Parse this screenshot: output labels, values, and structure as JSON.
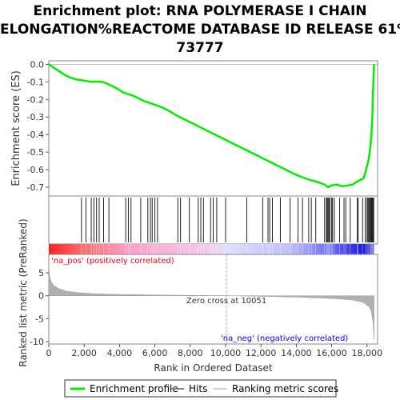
{
  "title_lines": [
    "Enrichment plot: RNA POLYMERASE I CHAIN",
    "ELONGATION%REACTOME DATABASE ID RELEASE 61%",
    "73777"
  ],
  "chart_data": {
    "type": "line",
    "title": "Enrichment plot: RNA POLYMERASE I CHAIN ELONGATION%REACTOME DATABASE ID RELEASE 61% 73777",
    "xlabel": "Rank in Ordered Dataset",
    "x_ticks": [
      "0",
      "2,000",
      "4,000",
      "6,000",
      "8,000",
      "10,000",
      "12,000",
      "14,000",
      "16,000",
      "18,000"
    ],
    "xlim": [
      0,
      18600
    ],
    "top_panel": {
      "ylabel": "Enrichment score (ES)",
      "ylim": [
        -0.75,
        0.02
      ],
      "y_ticks": [
        "0.0",
        "-0.1",
        "-0.2",
        "-0.3",
        "-0.4",
        "-0.5",
        "-0.6",
        "-0.7"
      ],
      "series": [
        {
          "name": "Enrichment profile",
          "color": "#00ee00",
          "x": [
            0,
            300,
            600,
            900,
            1200,
            1500,
            1800,
            2100,
            2400,
            2600,
            2800,
            3000,
            3300,
            3600,
            3900,
            4200,
            4500,
            4800,
            5100,
            5400,
            5700,
            6000,
            6400,
            6800,
            7200,
            7600,
            8000,
            8400,
            8800,
            9200,
            9600,
            10000,
            10400,
            10800,
            11200,
            11600,
            12000,
            12400,
            12800,
            13200,
            13600,
            14000,
            14400,
            14800,
            15200,
            15600,
            15800,
            16000,
            16300,
            16600,
            16900,
            17200,
            17400,
            17600,
            17800,
            17900,
            18000,
            18100,
            18150,
            18200,
            18250,
            18300,
            18330,
            18360,
            18400
          ],
          "y": [
            0.0,
            -0.02,
            -0.04,
            -0.06,
            -0.075,
            -0.085,
            -0.09,
            -0.095,
            -0.1,
            -0.098,
            -0.1,
            -0.1,
            -0.11,
            -0.125,
            -0.14,
            -0.16,
            -0.17,
            -0.18,
            -0.195,
            -0.21,
            -0.22,
            -0.23,
            -0.245,
            -0.265,
            -0.29,
            -0.31,
            -0.33,
            -0.35,
            -0.37,
            -0.39,
            -0.41,
            -0.43,
            -0.45,
            -0.47,
            -0.49,
            -0.51,
            -0.53,
            -0.55,
            -0.57,
            -0.59,
            -0.61,
            -0.63,
            -0.645,
            -0.66,
            -0.67,
            -0.685,
            -0.7,
            -0.69,
            -0.685,
            -0.695,
            -0.69,
            -0.685,
            -0.67,
            -0.66,
            -0.65,
            -0.62,
            -0.58,
            -0.54,
            -0.5,
            -0.46,
            -0.4,
            -0.3,
            -0.2,
            -0.1,
            0.0
          ]
        }
      ]
    },
    "hits": {
      "name": "Hits",
      "x": [
        1850,
        2100,
        2400,
        2550,
        2700,
        2850,
        3100,
        3400,
        4350,
        4500,
        4650,
        5200,
        5600,
        5750,
        5850,
        6000,
        6150,
        7300,
        7450,
        7950,
        8450,
        8600,
        8750,
        9150,
        9300,
        9500,
        10000,
        11200,
        12100,
        12400,
        12500,
        12650,
        13100,
        13650,
        14100,
        14350,
        14700,
        14850,
        15100,
        15600,
        15700,
        15750,
        15800,
        15850,
        15900,
        16000,
        16050,
        16150,
        16450,
        16700,
        16800,
        17050,
        17450,
        17500,
        17750,
        17900,
        18000,
        18050,
        18100,
        18150,
        18200,
        18230,
        18260,
        18290,
        18320,
        18350,
        18380
      ]
    },
    "bottom_panel": {
      "ylabel": "Ranked list metric (PreRanked)",
      "ylim": [
        -10.5,
        9
      ],
      "y_ticks": [
        "5",
        "0",
        "-5",
        "-10"
      ],
      "series": [
        {
          "name": "Ranking metric scores",
          "color": "#b0b0b0",
          "x": [
            0,
            50,
            150,
            300,
            600,
            1000,
            1600,
            2500,
            4000,
            6000,
            8000,
            10051,
            12000,
            14000,
            15500,
            16500,
            17300,
            17800,
            18100,
            18250,
            18350,
            18400
          ],
          "y": [
            6.5,
            4.0,
            3.0,
            2.2,
            1.5,
            1.0,
            0.7,
            0.45,
            0.3,
            0.18,
            0.08,
            0.0,
            -0.12,
            -0.3,
            -0.5,
            -0.7,
            -1.0,
            -1.5,
            -2.3,
            -3.5,
            -6.0,
            -9.5
          ]
        }
      ],
      "zero_cross_x": 10051
    },
    "annotations": {
      "pos_label": "'na_pos' (positively correlated)",
      "neg_label": "'na_neg' (negatively correlated)",
      "zero_cross": "Zero cross at 10051"
    },
    "legend": {
      "placement": "bottom",
      "items": [
        {
          "label": "Enrichment profile",
          "color": "#00ee00"
        },
        {
          "label": "Hits",
          "color": "#808080"
        },
        {
          "label": "Ranking metric scores",
          "color": "#d0d0d0"
        }
      ]
    },
    "colors": {
      "pos_label": "#e8001a",
      "neg_label": "#0000ee",
      "heat_pos": "#ff2a2a",
      "heat_neg": "#1a1aff"
    }
  }
}
